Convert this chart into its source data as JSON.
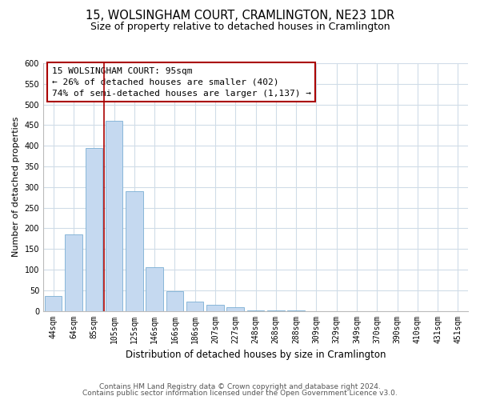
{
  "title": "15, WOLSINGHAM COURT, CRAMLINGTON, NE23 1DR",
  "subtitle": "Size of property relative to detached houses in Cramlington",
  "xlabel": "Distribution of detached houses by size in Cramlington",
  "ylabel": "Number of detached properties",
  "bar_labels": [
    "44sqm",
    "64sqm",
    "85sqm",
    "105sqm",
    "125sqm",
    "146sqm",
    "166sqm",
    "186sqm",
    "207sqm",
    "227sqm",
    "248sqm",
    "268sqm",
    "288sqm",
    "309sqm",
    "329sqm",
    "349sqm",
    "370sqm",
    "390sqm",
    "410sqm",
    "431sqm",
    "451sqm"
  ],
  "bar_values": [
    35,
    185,
    395,
    460,
    290,
    105,
    48,
    22,
    15,
    8,
    2,
    1,
    1,
    0,
    0,
    0,
    0,
    0,
    0,
    0,
    0
  ],
  "bar_color": "#c5d9f0",
  "bar_edge_color": "#7bafd4",
  "vline_color": "#aa0000",
  "annotation_line1": "15 WOLSINGHAM COURT: 95sqm",
  "annotation_line2": "← 26% of detached houses are smaller (402)",
  "annotation_line3": "74% of semi-detached houses are larger (1,137) →",
  "annotation_box_color": "#ffffff",
  "annotation_box_edge": "#aa0000",
  "ylim": [
    0,
    600
  ],
  "yticks": [
    0,
    50,
    100,
    150,
    200,
    250,
    300,
    350,
    400,
    450,
    500,
    550,
    600
  ],
  "footer1": "Contains HM Land Registry data © Crown copyright and database right 2024.",
  "footer2": "Contains public sector information licensed under the Open Government Licence v3.0.",
  "bg_color": "#ffffff",
  "grid_color": "#d0dce8",
  "title_fontsize": 10.5,
  "subtitle_fontsize": 9,
  "xlabel_fontsize": 8.5,
  "ylabel_fontsize": 8,
  "tick_fontsize": 7,
  "annotation_fontsize": 8,
  "footer_fontsize": 6.5
}
